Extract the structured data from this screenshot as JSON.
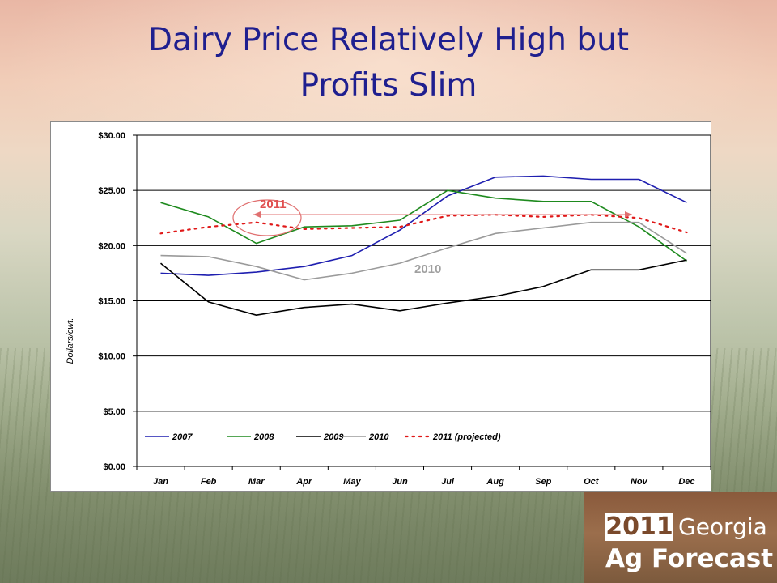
{
  "slide": {
    "title_line1": "Dairy Price  Relatively High but",
    "title_line2": "Profits Slim"
  },
  "logo": {
    "year": "2011",
    "state": "Georgia",
    "name": "Ag Forecast"
  },
  "chart_data": {
    "type": "line",
    "ylabel": "Dollars/cwt.",
    "ylim": [
      0,
      30
    ],
    "yticks": [
      0,
      5,
      10,
      15,
      20,
      25,
      30
    ],
    "ytick_labels": [
      "$0.00",
      "$5.00",
      "$10.00",
      "$15.00",
      "$20.00",
      "$25.00",
      "$30.00"
    ],
    "categories": [
      "Jan",
      "Feb",
      "Mar",
      "Apr",
      "May",
      "Jun",
      "Jul",
      "Aug",
      "Sep",
      "Oct",
      "Nov",
      "Dec"
    ],
    "grid": "horizontal",
    "legend_position": "bottom-inside",
    "series": [
      {
        "name": "2007",
        "color": "#1f1fb0",
        "dash": "solid",
        "values": [
          17.5,
          17.3,
          17.6,
          18.1,
          19.1,
          21.4,
          24.5,
          26.2,
          26.3,
          26.0,
          26.0,
          23.9
        ]
      },
      {
        "name": "2008",
        "color": "#1e8a1e",
        "dash": "solid",
        "values": [
          23.9,
          22.6,
          20.2,
          21.7,
          21.8,
          22.3,
          25.0,
          24.3,
          24.0,
          24.0,
          21.7,
          18.6
        ]
      },
      {
        "name": "2009",
        "color": "#000000",
        "dash": "solid",
        "values": [
          18.4,
          14.9,
          13.7,
          14.4,
          14.7,
          14.1,
          14.8,
          15.4,
          16.3,
          17.8,
          17.8,
          18.7
        ]
      },
      {
        "name": "2010",
        "color": "#9a9a9a",
        "dash": "solid",
        "values": [
          19.1,
          19.0,
          18.1,
          16.9,
          17.5,
          18.4,
          19.8,
          21.1,
          21.6,
          22.1,
          22.1,
          19.3
        ]
      },
      {
        "name": "2011 (projected)",
        "color": "#e01818",
        "dash": "dotted",
        "values": [
          21.1,
          21.7,
          22.1,
          21.5,
          21.6,
          21.7,
          22.7,
          22.8,
          22.6,
          22.8,
          22.5,
          21.2
        ]
      }
    ],
    "annotations": [
      {
        "text": "2011",
        "color": "#e05050"
      },
      {
        "text": "2010",
        "color": "#a0a0a0"
      }
    ]
  }
}
